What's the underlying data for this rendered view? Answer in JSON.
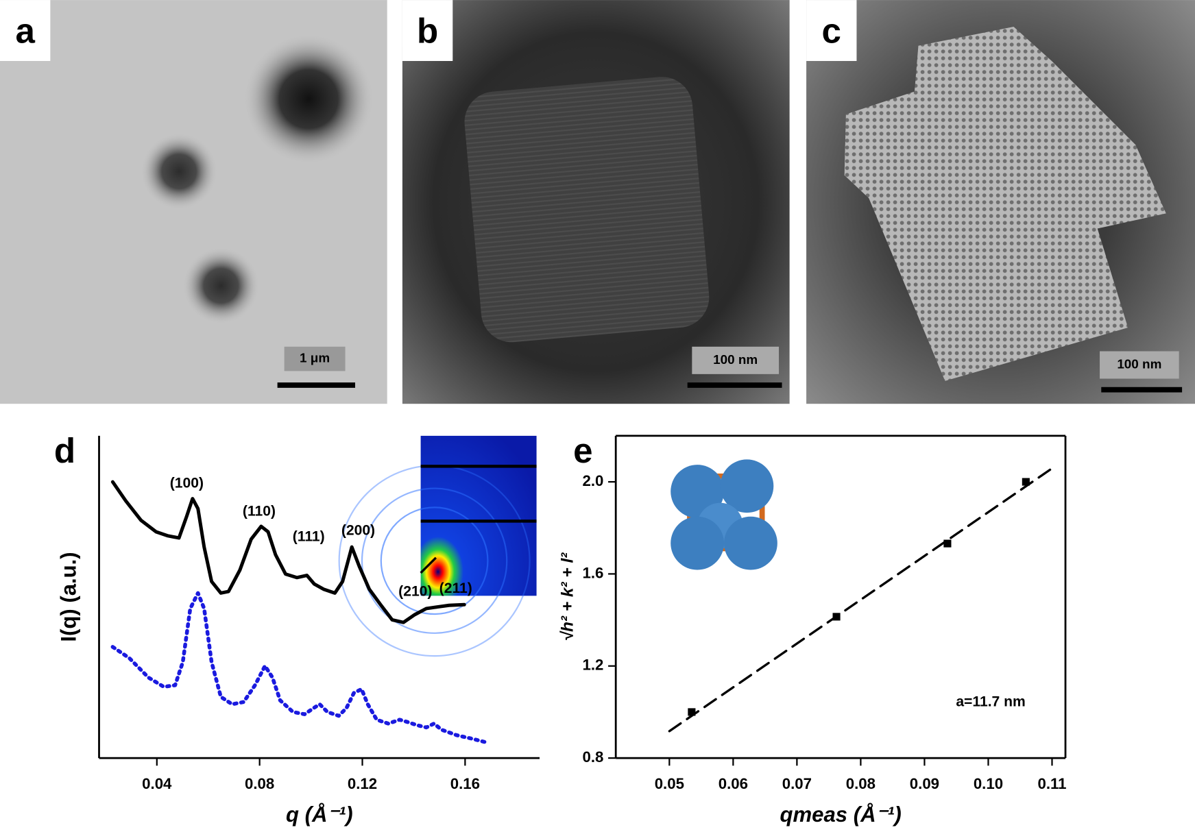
{
  "panels": [
    {
      "label": "a",
      "scale_bar": "1 μm"
    },
    {
      "label": "b",
      "scale_bar": "100 nm"
    },
    {
      "label": "c",
      "scale_bar": "100 nm"
    }
  ],
  "chart_data": [
    {
      "type": "line",
      "label": "d",
      "x_label": "q (Å⁻¹)",
      "y_label": "I(q) (a.u.)",
      "xlim": [
        0.0175,
        0.189
      ],
      "xticks": [
        0.04,
        0.08,
        0.12,
        0.16
      ],
      "ylim": [
        0,
        100
      ],
      "annotations": [
        "(100)",
        "(110)",
        "(111)",
        "(200)",
        "(210)",
        "(211)"
      ],
      "series": [
        {
          "color": "#000000",
          "style": "solid",
          "x": [
            0.0228,
            0.0279,
            0.0338,
            0.0397,
            0.0441,
            0.0486,
            0.0516,
            0.0539,
            0.056,
            0.0584,
            0.0613,
            0.0649,
            0.0679,
            0.0723,
            0.0767,
            0.0806,
            0.0833,
            0.0862,
            0.0901,
            0.0945,
            0.0984,
            0.1013,
            0.1049,
            0.1093,
            0.1123,
            0.1159,
            0.1188,
            0.1227,
            0.1271,
            0.1316,
            0.136,
            0.1404,
            0.1449,
            0.1493,
            0.1538,
            0.1597
          ],
          "values": [
            85.7,
            79.8,
            73.8,
            70.2,
            69,
            68.3,
            75,
            80.5,
            77.4,
            65.5,
            54.8,
            51.2,
            51.7,
            58.3,
            67.9,
            71.9,
            70.2,
            63.1,
            57.1,
            56,
            56.7,
            54,
            52.4,
            51.2,
            54.8,
            65.5,
            59.5,
            52.4,
            47.6,
            42.9,
            42.1,
            44.5,
            46.4,
            46.9,
            47.4,
            47.6
          ]
        },
        {
          "color": "#1a1adf",
          "style": "dotted",
          "x": [
            0.0228,
            0.0293,
            0.0367,
            0.0427,
            0.0471,
            0.0501,
            0.053,
            0.056,
            0.0584,
            0.0613,
            0.0649,
            0.0693,
            0.0738,
            0.0782,
            0.0821,
            0.085,
            0.088,
            0.093,
            0.0975,
            0.101,
            0.1034,
            0.1064,
            0.1108,
            0.1138,
            0.1167,
            0.1197,
            0.1221,
            0.1256,
            0.1301,
            0.1345,
            0.1375,
            0.1413,
            0.1449,
            0.1479,
            0.1508,
            0.1567,
            0.1627,
            0.1686
          ],
          "values": [
            34.5,
            31,
            25,
            22.1,
            22.6,
            29.8,
            46.4,
            51.2,
            46.4,
            29.8,
            19,
            16.7,
            17.4,
            22.6,
            28.6,
            25,
            17.9,
            14.3,
            13.6,
            15.5,
            16.7,
            14.3,
            13.1,
            15.5,
            20.2,
            21.4,
            16.7,
            11.9,
            10.7,
            11.9,
            11.2,
            10.2,
            9.5,
            10.7,
            8.8,
            7.1,
            6,
            4.8
          ]
        }
      ]
    },
    {
      "type": "scatter",
      "label": "e",
      "x_label": "qmeas (Å⁻¹)",
      "y_label": "√h² + k² + l²",
      "annotation": "a=11.7 nm",
      "xlim": [
        0.0416,
        0.1121
      ],
      "xticks": [
        {
          "value": 0.05,
          "label": "0.05"
        },
        {
          "value": 0.06,
          "label": "0.06"
        },
        {
          "value": 0.07,
          "label": "0.07"
        },
        {
          "value": 0.08,
          "label": "0.08"
        },
        {
          "value": 0.09,
          "label": "0.09"
        },
        {
          "value": 0.1,
          "label": "0.10"
        },
        {
          "value": 0.11,
          "label": "0.11"
        }
      ],
      "ylim": [
        0.8,
        2.2
      ],
      "yticks": [
        0.8,
        1.2,
        1.6,
        {
          "value": 2,
          "label": "2.0"
        }
      ],
      "points": {
        "color": "#000000",
        "x": [
          0.0535,
          0.0762,
          0.0936,
          0.1059
        ],
        "values": [
          1.0,
          1.414,
          1.732,
          2.0
        ]
      },
      "fit": {
        "color": "#000000",
        "style": "dashed",
        "x": [
          0.05,
          0.1106
        ],
        "values": [
          0.917,
          2.07
        ]
      }
    }
  ]
}
